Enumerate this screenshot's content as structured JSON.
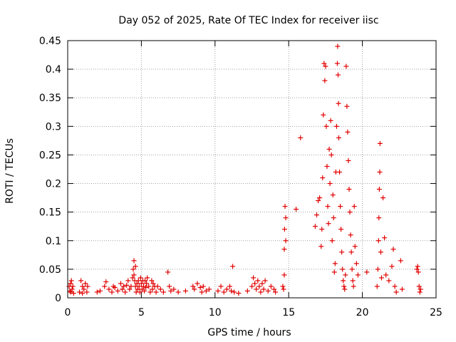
{
  "chart_data": {
    "type": "scatter",
    "title": "Day 052 of 2025, Rate Of TEC Index for receiver iisc",
    "xlabel": "GPS time / hours",
    "ylabel": "ROTI / TECUs",
    "xlim": [
      0,
      25
    ],
    "ylim": [
      0,
      0.45
    ],
    "x_ticks": [
      0,
      5,
      10,
      15,
      20,
      25
    ],
    "x_tick_labels": [
      "0",
      "5",
      "10",
      "15",
      "20",
      "25"
    ],
    "y_ticks": [
      0,
      0.05,
      0.1,
      0.15,
      0.2,
      0.25,
      0.3,
      0.35,
      0.4,
      0.45
    ],
    "y_tick_labels": [
      "0",
      "0.05",
      "0.1",
      "0.15",
      "0.2",
      "0.25",
      "0.3",
      "0.35",
      "0.4",
      "0.45"
    ],
    "grid": true,
    "marker": "plus",
    "color": "#e00000",
    "series": [
      {
        "name": "ROTI",
        "points": [
          [
            0.1,
            0.02
          ],
          [
            0.2,
            0.01
          ],
          [
            0.25,
            0.03
          ],
          [
            0.3,
            0.015
          ],
          [
            0.35,
            0.02
          ],
          [
            0.4,
            0.008
          ],
          [
            0.15,
            0.012
          ],
          [
            0.2,
            0.025
          ],
          [
            0.8,
            0.01
          ],
          [
            0.9,
            0.03
          ],
          [
            1.0,
            0.02
          ],
          [
            1.1,
            0.015
          ],
          [
            1.2,
            0.025
          ],
          [
            1.3,
            0.01
          ],
          [
            1.35,
            0.02
          ],
          [
            1.0,
            0.008
          ],
          [
            2.0,
            0.01
          ],
          [
            2.2,
            0.012
          ],
          [
            2.5,
            0.02
          ],
          [
            2.6,
            0.028
          ],
          [
            2.8,
            0.015
          ],
          [
            3.0,
            0.01
          ],
          [
            3.1,
            0.02
          ],
          [
            3.2,
            0.018
          ],
          [
            3.4,
            0.012
          ],
          [
            3.6,
            0.025
          ],
          [
            3.7,
            0.015
          ],
          [
            3.8,
            0.02
          ],
          [
            3.9,
            0.01
          ],
          [
            4.0,
            0.022
          ],
          [
            4.1,
            0.03
          ],
          [
            4.2,
            0.015
          ],
          [
            4.3,
            0.02
          ],
          [
            4.4,
            0.035
          ],
          [
            4.45,
            0.05
          ],
          [
            4.5,
            0.065
          ],
          [
            4.5,
            0.04
          ],
          [
            4.55,
            0.03
          ],
          [
            4.6,
            0.02
          ],
          [
            4.6,
            0.055
          ],
          [
            4.65,
            0.01
          ],
          [
            4.7,
            0.025
          ],
          [
            4.75,
            0.015
          ],
          [
            4.8,
            0.03
          ],
          [
            4.85,
            0.02
          ],
          [
            4.9,
            0.01
          ],
          [
            4.95,
            0.035
          ],
          [
            5.0,
            0.025
          ],
          [
            5.05,
            0.015
          ],
          [
            5.1,
            0.03
          ],
          [
            5.15,
            0.02
          ],
          [
            5.2,
            0.012
          ],
          [
            5.25,
            0.03
          ],
          [
            5.3,
            0.018
          ],
          [
            5.35,
            0.025
          ],
          [
            5.4,
            0.035
          ],
          [
            5.5,
            0.02
          ],
          [
            5.6,
            0.01
          ],
          [
            5.7,
            0.03
          ],
          [
            5.75,
            0.015
          ],
          [
            5.8,
            0.025
          ],
          [
            5.9,
            0.02
          ],
          [
            6.0,
            0.01
          ],
          [
            6.1,
            0.02
          ],
          [
            6.3,
            0.015
          ],
          [
            6.5,
            0.01
          ],
          [
            6.8,
            0.045
          ],
          [
            6.9,
            0.02
          ],
          [
            7.0,
            0.012
          ],
          [
            7.2,
            0.015
          ],
          [
            7.5,
            0.01
          ],
          [
            8.0,
            0.012
          ],
          [
            8.5,
            0.02
          ],
          [
            8.6,
            0.015
          ],
          [
            8.8,
            0.025
          ],
          [
            9.0,
            0.018
          ],
          [
            9.1,
            0.01
          ],
          [
            9.2,
            0.02
          ],
          [
            9.4,
            0.012
          ],
          [
            9.6,
            0.015
          ],
          [
            10.2,
            0.012
          ],
          [
            10.4,
            0.02
          ],
          [
            10.6,
            0.01
          ],
          [
            10.8,
            0.015
          ],
          [
            11.0,
            0.02
          ],
          [
            11.1,
            0.012
          ],
          [
            11.2,
            0.055
          ],
          [
            11.3,
            0.01
          ],
          [
            11.6,
            0.008
          ],
          [
            12.2,
            0.012
          ],
          [
            12.5,
            0.02
          ],
          [
            12.6,
            0.035
          ],
          [
            12.7,
            0.025
          ],
          [
            12.8,
            0.015
          ],
          [
            12.9,
            0.03
          ],
          [
            13.0,
            0.02
          ],
          [
            13.1,
            0.01
          ],
          [
            13.2,
            0.025
          ],
          [
            13.3,
            0.015
          ],
          [
            13.4,
            0.03
          ],
          [
            13.6,
            0.012
          ],
          [
            13.8,
            0.02
          ],
          [
            14.0,
            0.015
          ],
          [
            14.1,
            0.01
          ],
          [
            14.6,
            0.02
          ],
          [
            14.65,
            0.015
          ],
          [
            14.7,
            0.04
          ],
          [
            14.7,
            0.085
          ],
          [
            14.72,
            0.12
          ],
          [
            14.75,
            0.16
          ],
          [
            14.8,
            0.1
          ],
          [
            14.8,
            0.14
          ],
          [
            15.5,
            0.155
          ],
          [
            15.8,
            0.28
          ],
          [
            16.8,
            0.125
          ],
          [
            16.9,
            0.145
          ],
          [
            17.0,
            0.17
          ],
          [
            17.1,
            0.175
          ],
          [
            17.2,
            0.09
          ],
          [
            17.25,
            0.12
          ],
          [
            17.3,
            0.21
          ],
          [
            17.35,
            0.32
          ],
          [
            17.4,
            0.41
          ],
          [
            17.45,
            0.38
          ],
          [
            17.5,
            0.405
          ],
          [
            17.55,
            0.3
          ],
          [
            17.6,
            0.23
          ],
          [
            17.65,
            0.16
          ],
          [
            17.7,
            0.13
          ],
          [
            17.75,
            0.26
          ],
          [
            17.8,
            0.2
          ],
          [
            17.85,
            0.31
          ],
          [
            17.9,
            0.25
          ],
          [
            17.95,
            0.1
          ],
          [
            18.0,
            0.18
          ],
          [
            18.05,
            0.14
          ],
          [
            18.1,
            0.045
          ],
          [
            18.15,
            0.06
          ],
          [
            18.2,
            0.22
          ],
          [
            18.25,
            0.3
          ],
          [
            18.3,
            0.41
          ],
          [
            18.32,
            0.44
          ],
          [
            18.35,
            0.39
          ],
          [
            18.38,
            0.34
          ],
          [
            18.4,
            0.28
          ],
          [
            18.45,
            0.22
          ],
          [
            18.5,
            0.16
          ],
          [
            18.55,
            0.12
          ],
          [
            18.6,
            0.08
          ],
          [
            18.65,
            0.05
          ],
          [
            18.7,
            0.03
          ],
          [
            18.75,
            0.02
          ],
          [
            18.8,
            0.015
          ],
          [
            18.85,
            0.04
          ],
          [
            18.9,
            0.405
          ],
          [
            18.95,
            0.335
          ],
          [
            19.0,
            0.29
          ],
          [
            19.05,
            0.24
          ],
          [
            19.1,
            0.19
          ],
          [
            19.15,
            0.15
          ],
          [
            19.2,
            0.11
          ],
          [
            19.25,
            0.08
          ],
          [
            19.3,
            0.05
          ],
          [
            19.35,
            0.03
          ],
          [
            19.4,
            0.02
          ],
          [
            19.45,
            0.16
          ],
          [
            19.5,
            0.09
          ],
          [
            19.6,
            0.06
          ],
          [
            19.7,
            0.04
          ],
          [
            20.3,
            0.045
          ],
          [
            21.0,
            0.02
          ],
          [
            21.05,
            0.05
          ],
          [
            21.1,
            0.1
          ],
          [
            21.12,
            0.14
          ],
          [
            21.15,
            0.19
          ],
          [
            21.18,
            0.22
          ],
          [
            21.2,
            0.27
          ],
          [
            21.25,
            0.08
          ],
          [
            21.3,
            0.035
          ],
          [
            21.4,
            0.175
          ],
          [
            21.5,
            0.105
          ],
          [
            21.6,
            0.04
          ],
          [
            21.8,
            0.03
          ],
          [
            22.0,
            0.055
          ],
          [
            22.1,
            0.085
          ],
          [
            22.2,
            0.02
          ],
          [
            22.3,
            0.01
          ],
          [
            22.6,
            0.065
          ],
          [
            22.7,
            0.015
          ],
          [
            23.7,
            0.05
          ],
          [
            23.75,
            0.055
          ],
          [
            23.8,
            0.045
          ],
          [
            23.85,
            0.02
          ],
          [
            23.9,
            0.01
          ],
          [
            23.95,
            0.015
          ]
        ]
      }
    ]
  }
}
